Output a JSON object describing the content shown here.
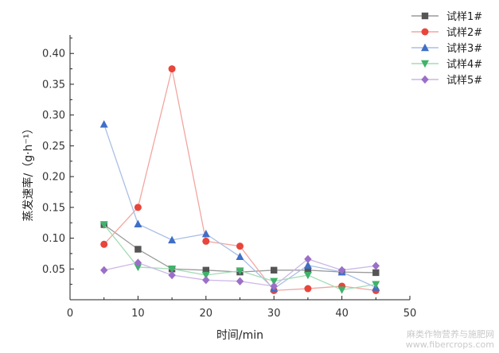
{
  "chart_data": {
    "type": "line",
    "xlabel": "时间/min",
    "ylabel": "蒸发速率/（g·h⁻¹）",
    "xlim": [
      0,
      50
    ],
    "ylim": [
      0,
      0.43
    ],
    "xticks": [
      "0",
      "10",
      "20",
      "30",
      "40",
      "50"
    ],
    "yticks": [
      "0.05",
      "0.10",
      "0.15",
      "0.20",
      "0.25",
      "0.30",
      "0.35",
      "0.40"
    ],
    "x": [
      5,
      10,
      15,
      20,
      25,
      30,
      35,
      40,
      45
    ],
    "grid": false,
    "legend_position": "top-right",
    "series": [
      {
        "name": "试样1#",
        "color": "#555555",
        "line_color": "#9a9a9a",
        "marker": "square",
        "values": [
          0.122,
          0.082,
          0.05,
          0.048,
          0.045,
          0.048,
          0.048,
          0.045,
          0.044
        ]
      },
      {
        "name": "试样2#",
        "color": "#e8453c",
        "line_color": "#f2a6a0",
        "marker": "circle",
        "values": [
          0.09,
          0.15,
          0.375,
          0.095,
          0.087,
          0.015,
          0.018,
          0.022,
          0.015
        ]
      },
      {
        "name": "试样3#",
        "color": "#3f6fc8",
        "line_color": "#a9bfe6",
        "marker": "triangle-up",
        "values": [
          0.285,
          0.123,
          0.097,
          0.107,
          0.07,
          0.018,
          0.056,
          0.045,
          0.02
        ]
      },
      {
        "name": "试样4#",
        "color": "#3fb36a",
        "line_color": "#a3dcb6",
        "marker": "triangle-down",
        "values": [
          0.122,
          0.053,
          0.05,
          0.04,
          0.047,
          0.03,
          0.04,
          0.016,
          0.025
        ]
      },
      {
        "name": "试样5#",
        "color": "#9b6fc8",
        "line_color": "#ccb6e6",
        "marker": "diamond",
        "values": [
          0.048,
          0.06,
          0.04,
          0.032,
          0.03,
          0.022,
          0.066,
          0.048,
          0.055
        ]
      }
    ]
  },
  "watermark": {
    "line1": "麻类作物营养与施肥网",
    "line2": "www.fibercrops.com"
  }
}
